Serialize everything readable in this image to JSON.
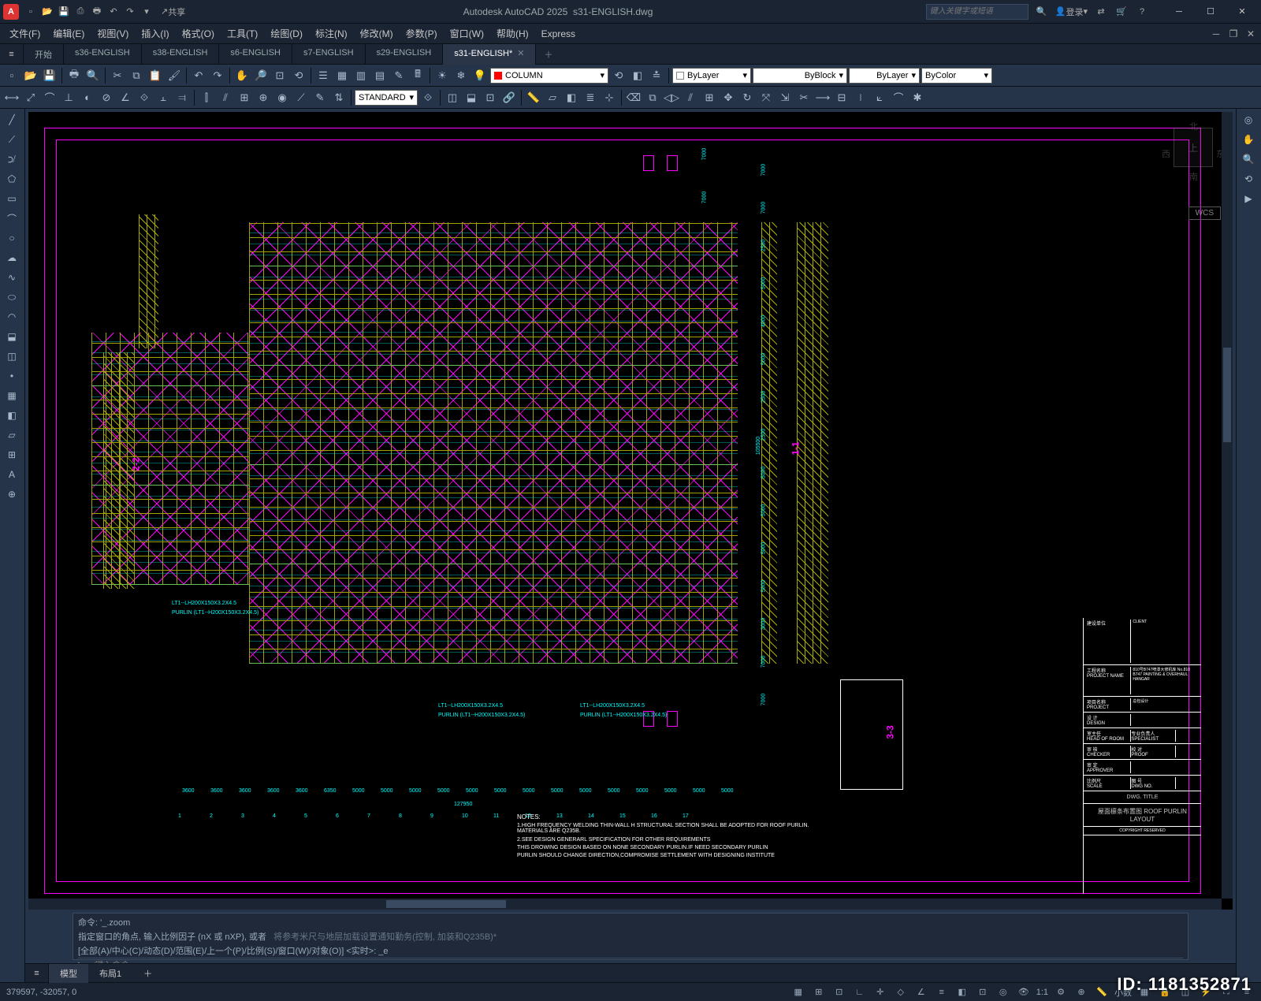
{
  "app": {
    "name": "Autodesk AutoCAD 2025",
    "file": "s31-ENGLISH.dwg",
    "icon_letter": "A"
  },
  "search": {
    "placeholder": "键入关键字或短语"
  },
  "login": {
    "label": "登录"
  },
  "qat_share": "共享",
  "menus": [
    "文件(F)",
    "编辑(E)",
    "视图(V)",
    "插入(I)",
    "格式(O)",
    "工具(T)",
    "绘图(D)",
    "标注(N)",
    "修改(M)",
    "参数(P)",
    "窗口(W)",
    "帮助(H)",
    "Express"
  ],
  "file_tabs": [
    {
      "label": "开始",
      "active": false
    },
    {
      "label": "s36-ENGLISH",
      "active": false
    },
    {
      "label": "s38-ENGLISH",
      "active": false
    },
    {
      "label": "s6-ENGLISH",
      "active": false
    },
    {
      "label": "s7-ENGLISH",
      "active": false
    },
    {
      "label": "s29-ENGLISH",
      "active": false
    },
    {
      "label": "s31-ENGLISH*",
      "active": true
    }
  ],
  "toolbar1": {
    "layer_current": "COLUMN",
    "layer_color": "#ff0000",
    "props_color": "ByLayer",
    "props_ltype": "ByBlock",
    "props_lweight": "ByLayer",
    "props_plot": "ByColor"
  },
  "toolbar2": {
    "textstyle": "STANDARD"
  },
  "viewcube": {
    "top": "上",
    "n": "北",
    "s": "南",
    "e": "东",
    "w": "西",
    "wcs": "WCS"
  },
  "drawing": {
    "purlin_note1": "LT1--LH200X150X3.2X4.5",
    "purlin_note2": "PURLIN (LT1--H200X150X3.2X4.5)",
    "total_dim": "127950",
    "bottom_dims": [
      "3600",
      "3600",
      "3600",
      "3600",
      "3600",
      "6350",
      "5000",
      "5000",
      "5000",
      "5000",
      "5000",
      "5000",
      "5000",
      "5000",
      "5000",
      "5000",
      "5000",
      "5000",
      "5000",
      "5000",
      "5000",
      "5000",
      "5000",
      "5000"
    ],
    "side_dims": [
      "7000",
      "7000",
      "2500",
      "5000",
      "4000",
      "5000",
      "2500",
      "2500",
      "5000",
      "5000",
      "5000",
      "5000",
      "3000",
      "7000",
      "7000"
    ],
    "col_top": [
      "7000",
      "7000"
    ],
    "grids_bottom": [
      "1",
      "2",
      "3",
      "4",
      "5",
      "6",
      "7",
      "8",
      "9",
      "10",
      "11",
      "12",
      "13",
      "14",
      "15",
      "16",
      "17"
    ],
    "notes_title": "NOTES:",
    "notes": [
      "1.HIGH FREQUENCY WELDING THIN-WALL H STRUCTURAL SECTION SHALL BE ADOPTED FOR ROOF PURLIN. MATERIALS ARE Q235B.",
      "2.SEE DESIGN GENERARL SPECIFICATION FOR OTHER REQUIREMENTS",
      "THIS DROWING DESIGN BASED ON NONE SECONDARY PURLIN.IF NEED SECONDARY PURLIN",
      "PURLIN SHOULD CHANGE DIRECTION,COMPROMISE SETTLEMENT WITH DESIGNING INSTITUTE"
    ],
    "vert_dim_right": "105500",
    "section_marks": [
      "1-1",
      "2-2",
      "3-3"
    ]
  },
  "titleblock": {
    "client_lbl": "建设单位",
    "client": "CLIENT",
    "project_lbl": "工程名称",
    "project_lbl2": "PROJECT NAME",
    "project": "810号B747喷漆大修机库 No.810 B747 PAINTING & OVERHAUL HANGAR",
    "item_lbl": "项目名称",
    "item_lbl2": "PROJECT",
    "item": "总包设计",
    "design_lbl": "设 计",
    "design_lbl2": "DESIGN",
    "head_lbl": "室主任",
    "head_lbl2": "HEAD OF ROOM",
    "chk_lbl": "审 核",
    "chk_lbl2": "CHECKER",
    "spec_lbl": "专业负责人",
    "spec_lbl2": "SPECIALIST",
    "appr_lbl": "审 定",
    "appr_lbl2": "APPROVER",
    "proof_lbl": "校 对",
    "proof_lbl2": "PROOF",
    "scale_lbl": "比例尺",
    "scale_lbl2": "SCALE",
    "dwgno_lbl": "图 号",
    "dwgno_lbl2": "DWG NO.",
    "dwg_title_lbl": "DWG. TITLE",
    "dwg_title": "屋面檩条布置图 ROOF PURLIN LAYOUT",
    "copyright": "COPYRIGHT RESERVED"
  },
  "cmd": {
    "l1": "命令: '_.zoom",
    "l2": "指定窗口的角点, 输入比例因子 (nX 或 nXP), 或者",
    "l3": "[全部(A)/中心(C)/动态(D)/范围(E)/上一个(P)/比例(S)/窗口(W)/对象(O)] <实时>: _e",
    "prompt": "▷─",
    "input_ph": "键入命令",
    "extra": "将参考米尺与地层加载设置通知勤务(控制, 加装和Q235B)*"
  },
  "layout_tabs": [
    "模型",
    "布局1"
  ],
  "status": {
    "coords": "379597, -32057, 0",
    "scale_lbl": "1:1",
    "dec_lbl": "小数"
  },
  "watermark_id": "ID: 1181352871",
  "colors": {
    "magenta": "#ff00ff",
    "cyan": "#00ffff",
    "yellow": "#aaaa00",
    "red": "#ff0000",
    "bg": "#000000",
    "ui": "#26344a"
  }
}
